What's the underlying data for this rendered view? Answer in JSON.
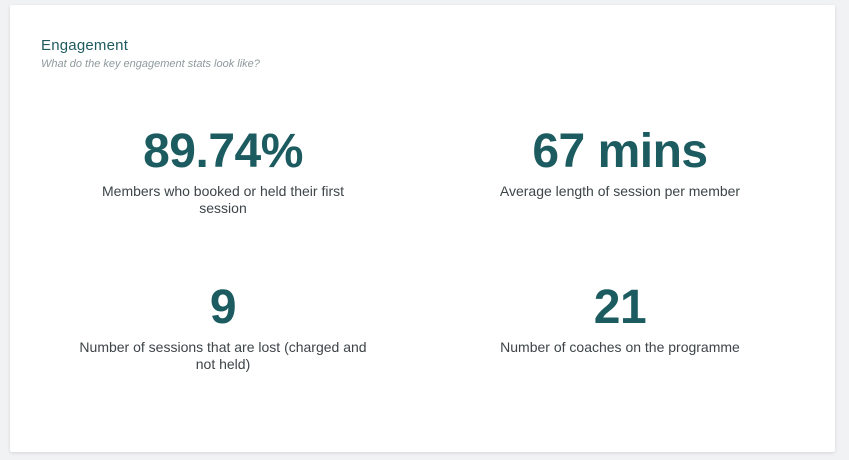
{
  "header": {
    "title": "Engagement",
    "subtitle": "What do the key engagement stats look like?"
  },
  "stats": [
    {
      "value": "89.74%",
      "label": "Members who booked or held their first session"
    },
    {
      "value": "67 mins",
      "label": "Average length of session per member"
    },
    {
      "value": "9",
      "label": "Number of sessions that are lost (charged and not held)"
    },
    {
      "value": "21",
      "label": "Number of coaches on the programme"
    }
  ],
  "colors": {
    "accent": "#1c5c60",
    "label": "#3d4548",
    "subtitle": "#8f9a9c"
  }
}
